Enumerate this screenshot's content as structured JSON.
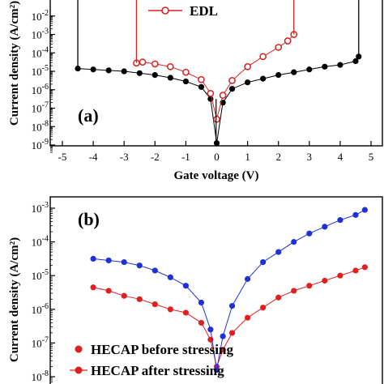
{
  "chart_data": [
    {
      "panel": "(a)",
      "type": "scatter",
      "xlabel": "Gate voltage (V)",
      "ylabel": "Current density (A/cm²)",
      "xlim": [
        -5,
        5
      ],
      "ylim_log10": [
        -9,
        -1.5
      ],
      "yscale": "log",
      "x_ticks": [
        "-5",
        "-4",
        "-3",
        "-2",
        "-1",
        "0",
        "1",
        "2",
        "3",
        "4",
        "5"
      ],
      "y_ticks": [
        {
          "exp": -2,
          "label": "-2"
        },
        {
          "exp": -3,
          "label": "-3"
        },
        {
          "exp": -4,
          "label": "-4"
        },
        {
          "exp": -5,
          "label": "-5"
        },
        {
          "exp": -6,
          "label": "-6"
        },
        {
          "exp": -7,
          "label": "-7"
        },
        {
          "exp": -8,
          "label": "-8"
        },
        {
          "exp": -9,
          "label": "-9"
        }
      ],
      "legend": [
        {
          "label": "EDL",
          "series": "EDL",
          "placement": "top-center"
        }
      ],
      "series": [
        {
          "name": "",
          "color": "#000000",
          "marker": "filled-circle",
          "x": [
            -4.5,
            -4.0,
            -3.5,
            -3.0,
            -2.5,
            -2.0,
            -1.5,
            -1.0,
            -0.5,
            -0.2,
            0.0,
            0.2,
            0.5,
            1.0,
            1.5,
            2.0,
            2.5,
            3.0,
            3.5,
            4.0,
            4.5,
            4.6
          ],
          "log10_y": [
            -4.85,
            -4.9,
            -4.95,
            -5.0,
            -5.1,
            -5.2,
            -5.35,
            -5.55,
            -5.85,
            -6.5,
            -8.9,
            -6.7,
            -5.95,
            -5.6,
            -5.4,
            -5.2,
            -5.05,
            -4.9,
            -4.75,
            -4.65,
            -4.45,
            -4.2
          ]
        },
        {
          "name": "EDL",
          "color": "#d62020",
          "marker": "open-circle",
          "x": [
            -2.6,
            -2.4,
            -2.0,
            -1.5,
            -1.0,
            -0.5,
            -0.2,
            0.0,
            0.2,
            0.5,
            1.0,
            1.5,
            2.0,
            2.3,
            2.5
          ],
          "log10_y": [
            -4.55,
            -4.5,
            -4.6,
            -4.75,
            -5.05,
            -5.45,
            -6.2,
            -7.6,
            -6.3,
            -5.5,
            -4.75,
            -4.2,
            -3.7,
            -3.35,
            -3.0
          ]
        }
      ]
    },
    {
      "panel": "(b)",
      "type": "scatter",
      "xlabel": "",
      "ylabel": "Current density (A/cm²)",
      "yscale": "log",
      "xlim": [
        -5,
        5
      ],
      "ylim_log10": [
        -8,
        -3
      ],
      "y_ticks": [
        {
          "exp": -3,
          "label": "-3"
        },
        {
          "exp": -4,
          "label": "-4"
        },
        {
          "exp": -5,
          "label": "-5"
        },
        {
          "exp": -6,
          "label": "-6"
        },
        {
          "exp": -7,
          "label": "-7"
        },
        {
          "exp": -8,
          "label": "-8"
        }
      ],
      "legend": [
        {
          "label": "HECAP before stressing",
          "series": "HECAP before stressing",
          "placement": "bottom-left"
        },
        {
          "label": "HECAP after stressing",
          "series": "HECAP after stressing",
          "placement": "bottom-left"
        }
      ],
      "series": [
        {
          "name": "HECAP before stressing",
          "color": "#e02020",
          "marker": "filled-circle",
          "x": [
            -4.0,
            -3.5,
            -3.0,
            -2.5,
            -2.0,
            -1.5,
            -1.0,
            -0.5,
            -0.2,
            0.0,
            0.2,
            0.5,
            1.0,
            1.5,
            2.0,
            2.5,
            3.0,
            3.5,
            4.0,
            4.5,
            4.8
          ],
          "log10_y": [
            -5.35,
            -5.45,
            -5.6,
            -5.7,
            -5.85,
            -6.0,
            -6.1,
            -6.4,
            -6.9,
            -7.7,
            -7.2,
            -6.7,
            -6.25,
            -5.95,
            -5.65,
            -5.45,
            -5.3,
            -5.15,
            -5.0,
            -4.85,
            -4.75
          ]
        },
        {
          "name": "HECAP after stressing",
          "color": "#2030d8",
          "marker": "filled-circle",
          "x": [
            -4.0,
            -3.5,
            -3.0,
            -2.5,
            -2.0,
            -1.5,
            -1.0,
            -0.5,
            -0.2,
            0.0,
            0.2,
            0.5,
            1.0,
            1.5,
            2.0,
            2.5,
            3.0,
            3.5,
            4.0,
            4.5,
            4.8
          ],
          "log10_y": [
            -4.5,
            -4.55,
            -4.6,
            -4.7,
            -4.85,
            -5.05,
            -5.3,
            -5.8,
            -6.6,
            -7.8,
            -6.8,
            -5.9,
            -5.1,
            -4.6,
            -4.3,
            -4.0,
            -3.75,
            -3.55,
            -3.35,
            -3.2,
            -3.05
          ]
        }
      ]
    }
  ]
}
